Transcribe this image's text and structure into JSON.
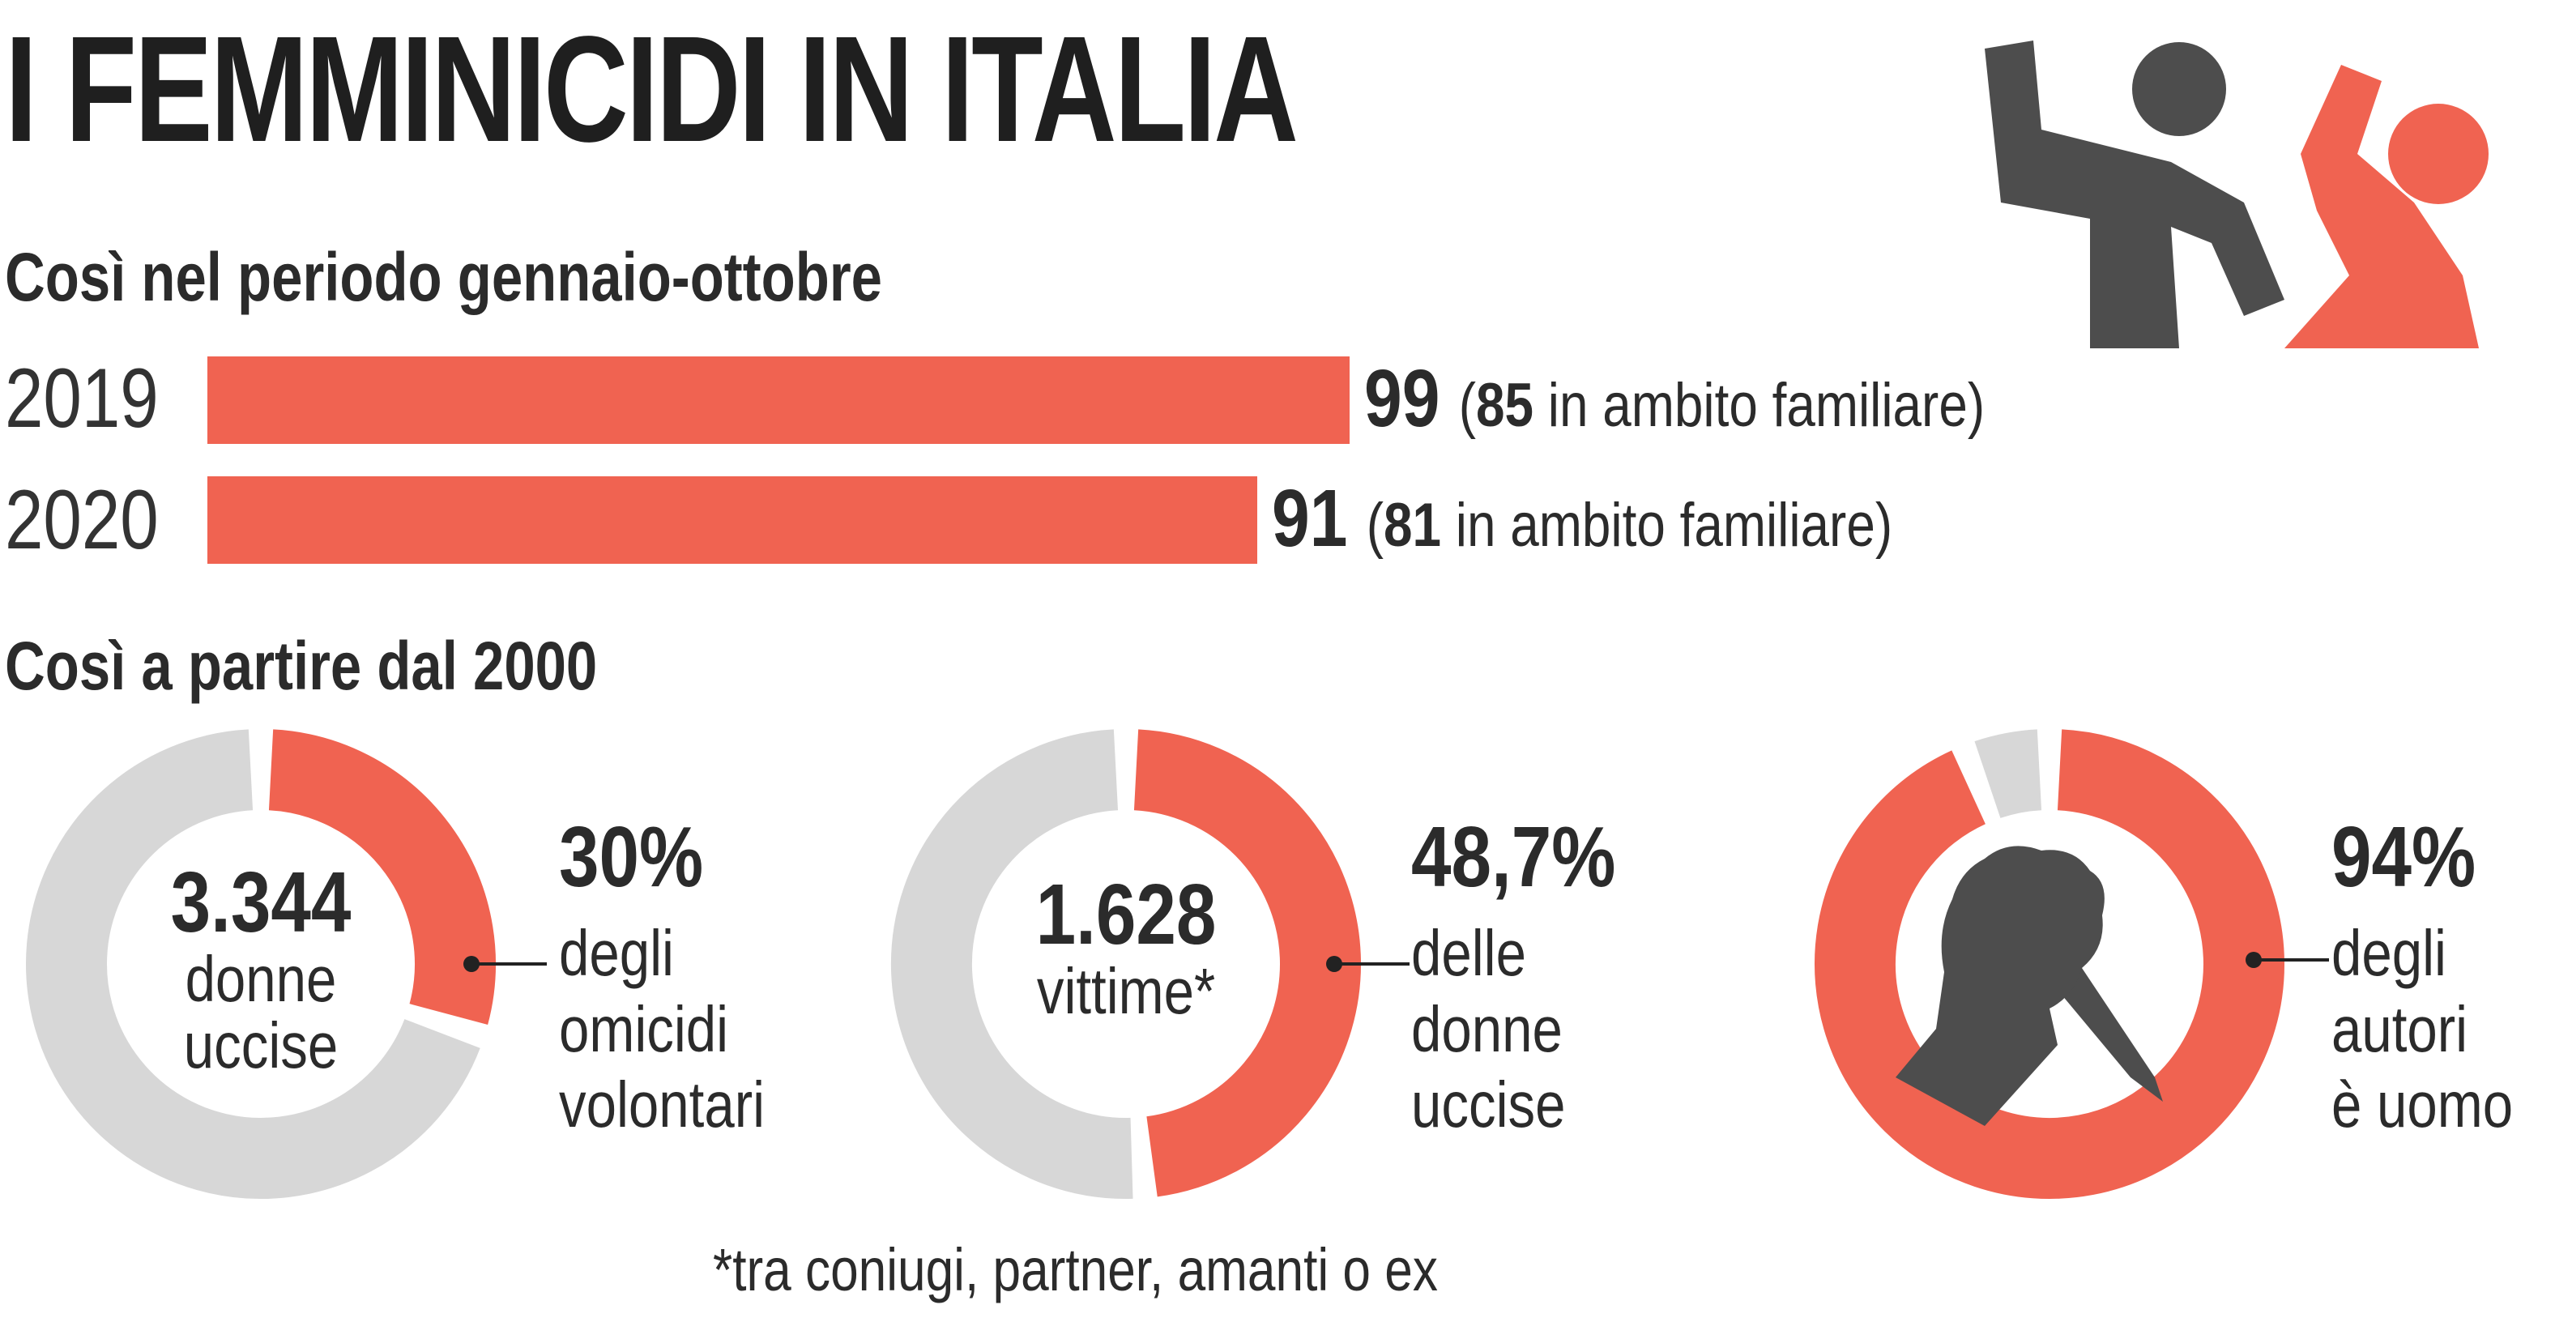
{
  "title": "I FEMMINICIDI IN ITALIA",
  "section1": {
    "subtitle": "Così nel periodo gennaio-ottobre",
    "bars": [
      {
        "year": "2019",
        "value": 99,
        "value_text": "99",
        "detail_open": "(",
        "detail_num": "85",
        "detail_text": " in ambito familiare)"
      },
      {
        "year": "2020",
        "value": 91,
        "value_text": "91",
        "detail_open": "(",
        "detail_num": "81",
        "detail_text": " in ambito familiare)"
      }
    ]
  },
  "section2": {
    "subtitle": "Così a partire dal 2000",
    "donuts": [
      {
        "center_value": "3.344",
        "center_label_1": "donne",
        "center_label_2": "uccise",
        "percent": 30,
        "percent_text": "30%",
        "desc": [
          "degli",
          "omicidi",
          "volontari"
        ]
      },
      {
        "center_value": "1.628",
        "center_label_1": "vittime*",
        "center_label_2": "",
        "percent": 48.7,
        "percent_text": "48,7%",
        "desc": [
          "delle",
          "donne",
          "uccise"
        ]
      },
      {
        "center_value": "",
        "center_label_1": "",
        "center_label_2": "",
        "percent": 94,
        "percent_text": "94%",
        "desc": [
          "degli",
          "autori",
          "è uomo"
        ]
      }
    ],
    "footnote": "*tra coniugi, partner, amanti o ex"
  },
  "colors": {
    "accent": "#f06351",
    "grey": "#d7d7d7",
    "dark": "#4d4d4d"
  },
  "icons": {
    "header": "aggression-icon",
    "donut3": "knife-hand-icon"
  },
  "chart_data": [
    {
      "type": "bar",
      "title": "Così nel periodo gennaio-ottobre",
      "categories": [
        "2019",
        "2020"
      ],
      "values": [
        99,
        91
      ],
      "annotations": [
        "85 in ambito familiare",
        "81 in ambito familiare"
      ]
    },
    {
      "type": "pie",
      "title": "Così a partire dal 2000",
      "charts": [
        {
          "center": "3.344 donne uccise",
          "value": 30,
          "label": "degli omicidi volontari"
        },
        {
          "center": "1.628 vittime*",
          "value": 48.7,
          "label": "delle donne uccise"
        },
        {
          "center": "",
          "value": 94,
          "label": "degli autori è uomo"
        }
      ]
    }
  ]
}
